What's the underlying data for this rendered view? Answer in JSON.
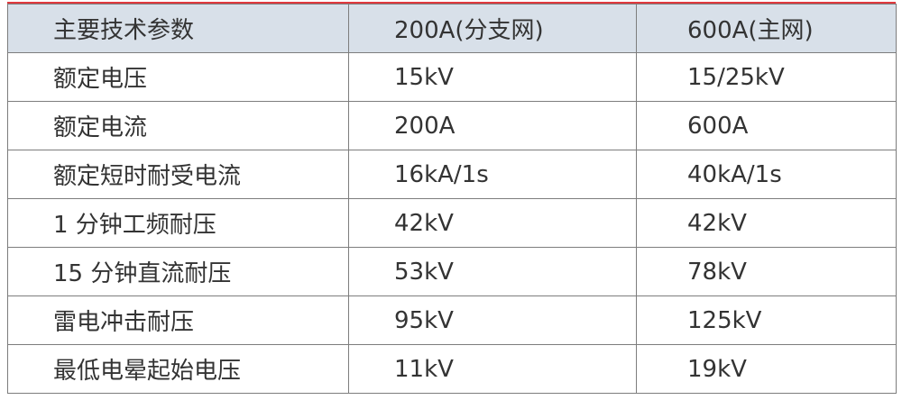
{
  "table": {
    "header": [
      "主要技术参数",
      "200A(分支网)",
      "600A(主网)"
    ],
    "rows": [
      [
        "额定电压",
        "15kV",
        "15/25kV"
      ],
      [
        "额定电流",
        "200A",
        "600A"
      ],
      [
        "额定短时耐受电流",
        "16kA/1s",
        "40kA/1s"
      ],
      [
        "1 分钟工频耐压",
        "42kV",
        "42kV"
      ],
      [
        "15 分钟直流耐压",
        "53kV",
        "78kV"
      ],
      [
        "雷电冲击耐压",
        "95kV",
        "125kV"
      ],
      [
        "最低电晕起始电压",
        "11kV",
        "19kV"
      ]
    ]
  }
}
